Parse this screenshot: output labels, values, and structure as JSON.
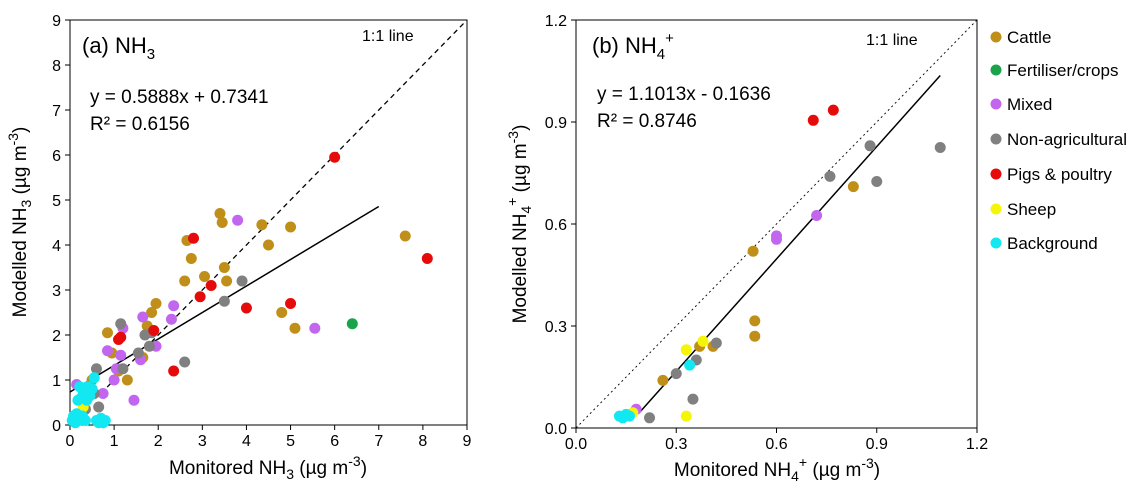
{
  "figure": {
    "legend": {
      "placement": "right",
      "items": [
        {
          "label": "Cattle",
          "color": "#bf8f1a"
        },
        {
          "label": "Fertiliser/crops",
          "color": "#1aa34a"
        },
        {
          "label": "Mixed",
          "color": "#c266f0"
        },
        {
          "label": "Non-agricultural",
          "color": "#808080"
        },
        {
          "label": "Pigs & poultry",
          "color": "#e60b0b"
        },
        {
          "label": "Sheep",
          "color": "#f5f50a"
        },
        {
          "label": "Background",
          "color": "#12e8f2"
        }
      ]
    }
  },
  "chart_data": [
    {
      "type": "scatter",
      "panel_label": "(a) NH",
      "panel_sub": "3",
      "xlabel": "Monitored NH",
      "xlabel_sub": "3",
      "xlabel_unit": " (µg m",
      "xlabel_sup": "-3",
      "xlabel_close": ")",
      "ylabel": "Modelled NH",
      "ylabel_sub": "3",
      "ylabel_unit": " (µg m",
      "ylabel_sup": "-3",
      "ylabel_close": ")",
      "xlim": [
        0,
        9
      ],
      "ylim": [
        0,
        9
      ],
      "x_ticks": [
        "0",
        "1",
        "2",
        "3",
        "4",
        "5",
        "6",
        "7",
        "8",
        "9"
      ],
      "y_ticks": [
        "0",
        "1",
        "2",
        "3",
        "4",
        "5",
        "6",
        "7",
        "8",
        "9"
      ],
      "grid": false,
      "equation": "y = 0.5888x + 0.7341",
      "r_squared": "R² = 0.6156",
      "one_to_one_label": "1:1 line",
      "regression": {
        "slope": 0.5888,
        "intercept": 0.7341,
        "x_range": [
          0,
          7
        ]
      },
      "one_to_one": {
        "x_range": [
          0.7,
          9
        ],
        "style": "dashed"
      },
      "series": [
        {
          "name": "Cattle",
          "color": "#bf8f1a",
          "points": [
            [
              0.5,
              1.0
            ],
            [
              0.85,
              2.05
            ],
            [
              0.95,
              1.6
            ],
            [
              1.1,
              1.2
            ],
            [
              1.3,
              1.0
            ],
            [
              1.65,
              1.5
            ],
            [
              1.75,
              2.2
            ],
            [
              1.85,
              2.5
            ],
            [
              1.95,
              2.7
            ],
            [
              2.6,
              3.2
            ],
            [
              2.65,
              4.1
            ],
            [
              2.75,
              3.7
            ],
            [
              3.05,
              3.3
            ],
            [
              3.4,
              4.7
            ],
            [
              3.45,
              4.5
            ],
            [
              3.5,
              3.5
            ],
            [
              3.55,
              3.2
            ],
            [
              4.35,
              4.45
            ],
            [
              4.5,
              4.0
            ],
            [
              4.8,
              2.5
            ],
            [
              5.0,
              4.4
            ],
            [
              5.1,
              2.15
            ],
            [
              7.6,
              4.2
            ]
          ]
        },
        {
          "name": "Fertiliser/crops",
          "color": "#1aa34a",
          "points": [
            [
              6.4,
              2.25
            ]
          ]
        },
        {
          "name": "Mixed",
          "color": "#c266f0",
          "points": [
            [
              0.15,
              0.9
            ],
            [
              0.5,
              0.8
            ],
            [
              0.75,
              0.7
            ],
            [
              0.85,
              1.65
            ],
            [
              1.0,
              1.0
            ],
            [
              1.05,
              1.25
            ],
            [
              1.15,
              1.55
            ],
            [
              1.2,
              2.15
            ],
            [
              1.45,
              0.55
            ],
            [
              1.6,
              1.45
            ],
            [
              1.65,
              2.4
            ],
            [
              1.95,
              1.75
            ],
            [
              2.3,
              2.35
            ],
            [
              2.35,
              2.65
            ],
            [
              3.8,
              4.55
            ],
            [
              5.55,
              2.15
            ]
          ]
        },
        {
          "name": "Non-agricultural",
          "color": "#808080",
          "points": [
            [
              0.35,
              0.35
            ],
            [
              0.55,
              0.7
            ],
            [
              0.6,
              1.25
            ],
            [
              0.65,
              0.4
            ],
            [
              1.15,
              2.25
            ],
            [
              1.2,
              1.25
            ],
            [
              1.55,
              1.6
            ],
            [
              1.7,
              2.0
            ],
            [
              1.8,
              1.75
            ],
            [
              1.85,
              2.05
            ],
            [
              2.6,
              1.4
            ],
            [
              3.5,
              2.75
            ],
            [
              3.9,
              3.2
            ]
          ]
        },
        {
          "name": "Pigs & poultry",
          "color": "#e60b0b",
          "points": [
            [
              1.1,
              1.9
            ],
            [
              1.15,
              1.95
            ],
            [
              1.9,
              2.1
            ],
            [
              2.35,
              1.2
            ],
            [
              2.8,
              4.15
            ],
            [
              2.95,
              2.85
            ],
            [
              3.2,
              3.1
            ],
            [
              4.0,
              2.6
            ],
            [
              5.0,
              2.7
            ],
            [
              6.0,
              5.95
            ],
            [
              8.1,
              3.7
            ]
          ]
        },
        {
          "name": "Sheep",
          "color": "#f5f50a",
          "points": [
            [
              0.3,
              0.4
            ]
          ]
        },
        {
          "name": "Background",
          "color": "#12e8f2",
          "points": [
            [
              0.05,
              0.1
            ],
            [
              0.08,
              0.2
            ],
            [
              0.1,
              0.15
            ],
            [
              0.12,
              0.05
            ],
            [
              0.15,
              0.25
            ],
            [
              0.18,
              0.55
            ],
            [
              0.2,
              0.1
            ],
            [
              0.22,
              0.85
            ],
            [
              0.25,
              0.6
            ],
            [
              0.28,
              0.2
            ],
            [
              0.3,
              0.75
            ],
            [
              0.35,
              0.1
            ],
            [
              0.38,
              0.55
            ],
            [
              0.4,
              0.85
            ],
            [
              0.45,
              0.65
            ],
            [
              0.5,
              0.8
            ],
            [
              0.55,
              1.05
            ],
            [
              0.6,
              0.1
            ],
            [
              0.65,
              0.05
            ],
            [
              0.7,
              0.15
            ],
            [
              0.75,
              0.05
            ],
            [
              0.8,
              0.1
            ]
          ]
        }
      ]
    },
    {
      "type": "scatter",
      "panel_label": "(b) NH",
      "panel_sub": "4",
      "panel_sup": "+",
      "xlabel": "Monitored NH",
      "xlabel_sub": "4",
      "xlabel_sup": "+",
      "xlabel_unit": " (µg m",
      "xlabel_unit_sup": "-3",
      "xlabel_close": ")",
      "ylabel": "Modelled NH",
      "ylabel_sub": "4",
      "ylabel_sup": "+",
      "ylabel_unit": " (µg m",
      "ylabel_unit_sup": "-3",
      "ylabel_close": ")",
      "xlim": [
        0,
        1.2
      ],
      "ylim": [
        0,
        1.2
      ],
      "x_ticks": [
        "0.0",
        "0.3",
        "0.6",
        "0.9",
        "1.2"
      ],
      "y_ticks": [
        "0.0",
        "0.3",
        "0.6",
        "0.9",
        "1.2"
      ],
      "grid": false,
      "equation": "y = 1.1013x - 0.1636",
      "r_squared": "R² = 0.8746",
      "one_to_one_label": "1:1 line",
      "regression": {
        "slope": 1.1013,
        "intercept": -0.1636,
        "x_range": [
          0.19,
          1.09
        ]
      },
      "one_to_one": {
        "x_range": [
          0,
          1.2
        ],
        "style": "dotted"
      },
      "series": [
        {
          "name": "Cattle",
          "color": "#bf8f1a",
          "points": [
            [
              0.26,
              0.14
            ],
            [
              0.37,
              0.24
            ],
            [
              0.41,
              0.24
            ],
            [
              0.53,
              0.52
            ],
            [
              0.535,
              0.315
            ],
            [
              0.535,
              0.27
            ],
            [
              0.83,
              0.71
            ]
          ]
        },
        {
          "name": "Mixed",
          "color": "#c266f0",
          "points": [
            [
              0.18,
              0.055
            ],
            [
              0.6,
              0.565
            ],
            [
              0.6,
              0.555
            ],
            [
              0.72,
              0.625
            ]
          ]
        },
        {
          "name": "Non-agricultural",
          "color": "#808080",
          "points": [
            [
              0.22,
              0.03
            ],
            [
              0.3,
              0.16
            ],
            [
              0.35,
              0.085
            ],
            [
              0.36,
              0.2
            ],
            [
              0.42,
              0.25
            ],
            [
              0.76,
              0.74
            ],
            [
              0.88,
              0.83
            ],
            [
              0.9,
              0.725
            ],
            [
              1.09,
              0.825
            ]
          ]
        },
        {
          "name": "Pigs & poultry",
          "color": "#e60b0b",
          "points": [
            [
              0.71,
              0.905
            ],
            [
              0.77,
              0.935
            ]
          ]
        },
        {
          "name": "Sheep",
          "color": "#f5f50a",
          "points": [
            [
              0.17,
              0.045
            ],
            [
              0.33,
              0.035
            ],
            [
              0.33,
              0.23
            ],
            [
              0.38,
              0.255
            ]
          ]
        },
        {
          "name": "Background",
          "color": "#12e8f2",
          "points": [
            [
              0.13,
              0.035
            ],
            [
              0.14,
              0.03
            ],
            [
              0.15,
              0.04
            ],
            [
              0.16,
              0.035
            ],
            [
              0.34,
              0.185
            ]
          ]
        }
      ]
    }
  ]
}
